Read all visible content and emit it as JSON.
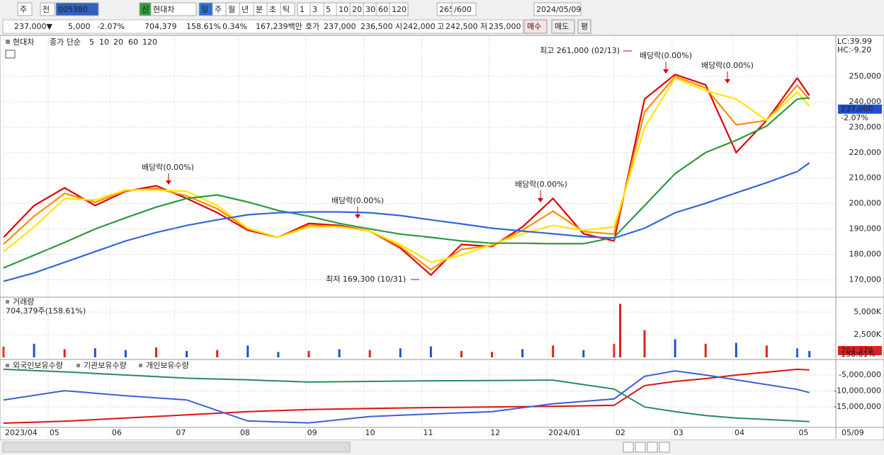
{
  "toolbar": {
    "items": [
      "주",
      "전",
      "005380",
      "신",
      "현대차",
      "일",
      "주",
      "월",
      "년",
      "분",
      "초",
      "틱",
      "1",
      "3",
      "5",
      "10",
      "20",
      "30",
      "60",
      "120",
      "265",
      "/600",
      "2024/05/09"
    ]
  },
  "infobar": {
    "items": [
      "237,000▼",
      "5,000",
      "-2.07%",
      "704,379",
      "158.61%",
      "0.34%",
      "167,239백만",
      "호가",
      "237,000",
      "236,500",
      "시",
      "242,000",
      "고",
      "242,500",
      "저",
      "235,000",
      "매수",
      "매도",
      "평"
    ]
  },
  "chart_data": [
    {
      "type": "line",
      "title": "현대차",
      "subtitle": "종가 단순",
      "lc_label": "LC:39.99",
      "hc_label": "HC:-9.20",
      "current": {
        "value": 237000,
        "label": "237,000"
      },
      "change_label": "-2.07%",
      "xlim": [
        0,
        265
      ],
      "ylim": [
        164000,
        265600
      ],
      "yticks": [
        {
          "value": 170000,
          "label": "170,000"
        },
        {
          "value": 180000,
          "label": "180,000"
        },
        {
          "value": 190000,
          "label": "190,000"
        },
        {
          "value": 200000,
          "label": "200,000"
        },
        {
          "value": 210000,
          "label": "210,000"
        },
        {
          "value": 220000,
          "label": "220,000"
        },
        {
          "value": 230000,
          "label": "230,000"
        },
        {
          "value": 240000,
          "label": "240,000"
        },
        {
          "value": 250000,
          "label": "250,000"
        }
      ],
      "grid": true,
      "x": [
        0,
        10,
        20,
        30,
        40,
        50,
        60,
        70,
        80,
        90,
        100,
        110,
        120,
        130,
        140,
        150,
        160,
        170,
        180,
        190,
        200,
        210,
        220,
        230,
        240,
        250,
        260,
        264
      ],
      "series": [
        {
          "name": "5",
          "color": "#e00000",
          "values": [
            186700,
            199200,
            206200,
            199200,
            204800,
            207000,
            202000,
            196400,
            189500,
            186700,
            192200,
            191400,
            189200,
            182500,
            171900,
            183900,
            183100,
            190800,
            202000,
            188100,
            185300,
            241100,
            250800,
            246700,
            220100,
            232700,
            249400,
            242500
          ]
        },
        {
          "name": "10",
          "color": "#ff8c00",
          "values": [
            184000,
            195000,
            204000,
            200500,
            205000,
            206000,
            203000,
            198000,
            190000,
            186700,
            191500,
            191000,
            189200,
            183000,
            174000,
            182000,
            183500,
            189500,
            197000,
            189000,
            188000,
            236000,
            250000,
            245500,
            231000,
            232700,
            246500,
            241000
          ]
        },
        {
          "name": "20",
          "color": "#ffe600",
          "values": [
            181100,
            190800,
            202000,
            201400,
            205400,
            205400,
            204800,
            199200,
            190300,
            186700,
            190800,
            190800,
            189200,
            183900,
            176900,
            179700,
            183900,
            188100,
            191400,
            189500,
            190800,
            229900,
            249400,
            244400,
            241100,
            232700,
            243900,
            238300
          ]
        },
        {
          "name": "60",
          "color": "#2a9a3c",
          "values": [
            174700,
            179700,
            184700,
            190000,
            194400,
            198600,
            202000,
            203400,
            200600,
            197300,
            195000,
            192200,
            190000,
            188000,
            186700,
            185300,
            184400,
            184400,
            184200,
            184200,
            186700,
            199200,
            211800,
            220100,
            224900,
            230500,
            241100,
            241600
          ]
        },
        {
          "name": "120",
          "color": "#3366dd",
          "values": [
            169400,
            172700,
            176900,
            181100,
            185300,
            188600,
            191400,
            193600,
            195600,
            196400,
            196700,
            196700,
            196400,
            195300,
            193600,
            192000,
            190300,
            189200,
            188100,
            187000,
            186400,
            190300,
            196400,
            200100,
            204200,
            208200,
            212600,
            216000
          ]
        }
      ],
      "annotations": [
        "배당락(0.00%)",
        "배당락(0.00%)",
        "배당락(0.00%)",
        "배당락(0.00%)",
        "배당락(0.00%)",
        "최고 261,000 (02/13)",
        "최저 169,300 (10/31)"
      ]
    },
    {
      "type": "bar",
      "title": "거래량",
      "subtitle": "704,379주(158.61%)",
      "current": {
        "value": 704379,
        "label": "704,379"
      },
      "ratio_label": "158.61%",
      "xlim": [
        0,
        265
      ],
      "ylim": [
        0,
        6250000
      ],
      "yticks": [
        {
          "value": 2500000,
          "label": "2,500K"
        },
        {
          "value": 5000000,
          "label": "5,000K"
        }
      ],
      "x": [
        0,
        10,
        20,
        30,
        40,
        50,
        60,
        70,
        80,
        90,
        100,
        110,
        120,
        130,
        140,
        150,
        160,
        170,
        180,
        190,
        200,
        202,
        210,
        220,
        230,
        240,
        250,
        260,
        264
      ],
      "values": [
        1200000,
        1500000,
        900000,
        1000000,
        800000,
        1100000,
        700000,
        800000,
        1300000,
        600000,
        700000,
        900000,
        800000,
        1000000,
        1200000,
        700000,
        600000,
        900000,
        1300000,
        800000,
        1500000,
        5900000,
        3000000,
        2000000,
        1500000,
        1600000,
        1300000,
        1000000,
        704379
      ],
      "colors": [
        "#e02020",
        "#2050d0",
        "#e02020",
        "#2050d0",
        "#2050d0",
        "#e02020",
        "#2050d0",
        "#e02020",
        "#2050d0",
        "#2050d0",
        "#e02020",
        "#2050d0",
        "#e02020",
        "#2050d0",
        "#2050d0",
        "#e02020",
        "#e02020",
        "#2050d0",
        "#e02020",
        "#2050d0",
        "#e02020",
        "#e02020",
        "#e02020",
        "#2050d0",
        "#e02020",
        "#2050d0",
        "#e02020",
        "#2050d0",
        "#2050d0"
      ]
    },
    {
      "type": "line",
      "xlim": [
        0,
        265
      ],
      "ylim": [
        -21200000,
        -560000
      ],
      "yticks": [
        {
          "value": -15000000,
          "label": "-15,000,000"
        },
        {
          "value": -10000000,
          "label": "-10,000,000"
        },
        {
          "value": -5000000,
          "label": "-5,000,000"
        }
      ],
      "xticks": [
        {
          "value": 0,
          "label": "2023/04"
        },
        {
          "value": 14.6,
          "label": "05"
        },
        {
          "value": 35,
          "label": "06"
        },
        {
          "value": 56,
          "label": "07"
        },
        {
          "value": 77,
          "label": "08"
        },
        {
          "value": 99,
          "label": "09"
        },
        {
          "value": 118,
          "label": "10"
        },
        {
          "value": 137,
          "label": "11"
        },
        {
          "value": 159,
          "label": "12"
        },
        {
          "value": 178,
          "label": "2024/01"
        },
        {
          "value": 200,
          "label": "02"
        },
        {
          "value": 219,
          "label": "03"
        },
        {
          "value": 239,
          "label": "04"
        },
        {
          "value": 260,
          "label": "05"
        }
      ],
      "x_end_label": "05/09",
      "x": [
        0,
        20,
        40,
        60,
        80,
        100,
        120,
        140,
        160,
        180,
        200,
        210,
        220,
        230,
        240,
        260,
        264
      ],
      "series": [
        {
          "name": "외국인보유수량",
          "color": "#e01010",
          "values": [
            -20100000,
            -19500000,
            -18500000,
            -17500000,
            -16500000,
            -15800000,
            -15500000,
            -15200000,
            -15000000,
            -14800000,
            -14500000,
            -8300000,
            -7000000,
            -6100000,
            -5000000,
            -3200000,
            -3400000
          ]
        },
        {
          "name": "기관보유수량",
          "color": "#2a8a5a",
          "values": [
            -3200000,
            -4000000,
            -5000000,
            -6000000,
            -6500000,
            -7200000,
            -7000000,
            -6800000,
            -6700000,
            -6600000,
            -9400000,
            -15000000,
            -16500000,
            -17700000,
            -18500000,
            -19400000,
            -19600000
          ]
        },
        {
          "name": "개인보유수량",
          "color": "#3a5ed8",
          "values": [
            -12800000,
            -9900000,
            -11500000,
            -12800000,
            -19400000,
            -20000000,
            -18000000,
            -17200000,
            -16500000,
            -14000000,
            -12500000,
            -5400000,
            -3700000,
            -5000000,
            -6500000,
            -9500000,
            -10500000
          ]
        }
      ]
    }
  ]
}
